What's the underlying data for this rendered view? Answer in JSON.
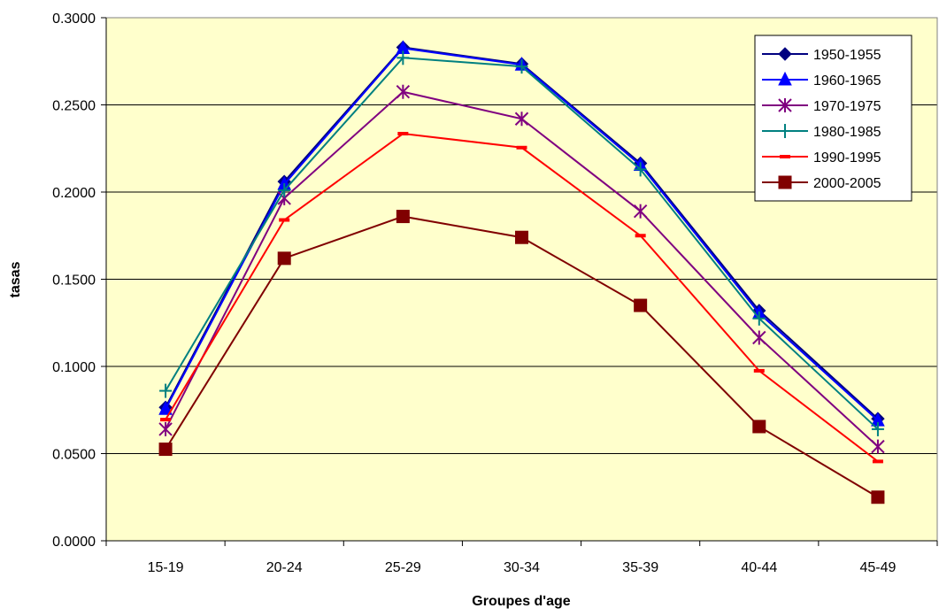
{
  "chart_data": {
    "type": "line",
    "title": "",
    "xlabel": "Groupes d'age",
    "ylabel": "tasas",
    "categories": [
      "15-19",
      "20-24",
      "25-29",
      "30-34",
      "35-39",
      "40-44",
      "45-49"
    ],
    "ylim": [
      0,
      0.3
    ],
    "yticks": [
      "0.0000",
      "0.0500",
      "0.1000",
      "0.1500",
      "0.2000",
      "0.2500",
      "0.3000"
    ],
    "grid": "horizontal",
    "legend_position": "top-right",
    "plot_background": "#ffffcc",
    "series": [
      {
        "name": "1950-1955",
        "color": "#000080",
        "marker": "diamond",
        "values": [
          0.0765,
          0.206,
          0.283,
          0.2735,
          0.2165,
          0.132,
          0.07
        ]
      },
      {
        "name": "1960-1965",
        "color": "#0000ff",
        "marker": "triangle",
        "values": [
          0.0755,
          0.2045,
          0.2825,
          0.273,
          0.2155,
          0.1305,
          0.069
        ]
      },
      {
        "name": "1970-1975",
        "color": "#800080",
        "marker": "asterisk",
        "values": [
          0.064,
          0.1965,
          0.2575,
          0.242,
          0.189,
          0.1165,
          0.054
        ]
      },
      {
        "name": "1980-1985",
        "color": "#008080",
        "marker": "plus",
        "values": [
          0.086,
          0.201,
          0.277,
          0.272,
          0.213,
          0.1275,
          0.064
        ]
      },
      {
        "name": "1990-1995",
        "color": "#ff0000",
        "marker": "dash",
        "values": [
          0.0695,
          0.184,
          0.2335,
          0.2255,
          0.175,
          0.0975,
          0.0455
        ]
      },
      {
        "name": "2000-2005",
        "color": "#800000",
        "marker": "square",
        "values": [
          0.0525,
          0.162,
          0.186,
          0.174,
          0.135,
          0.0655,
          0.025
        ]
      }
    ]
  }
}
